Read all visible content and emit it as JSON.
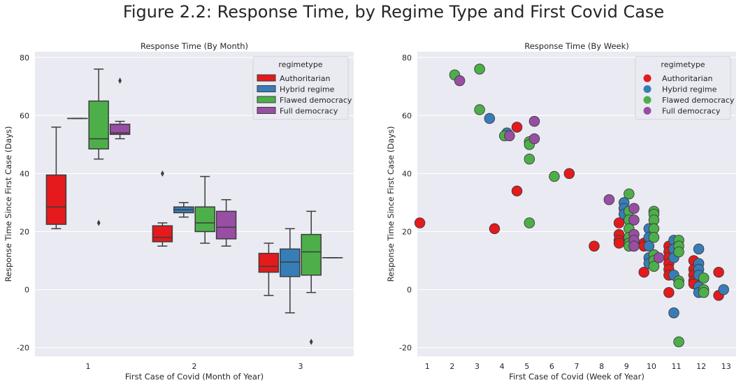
{
  "figure_title": "Figure 2.2: Response Time, by Regime Type and First Covid Case",
  "colors": {
    "Authoritarian": "#e41a1c",
    "Hybrid regime": "#377eb8",
    "Flawed democracy": "#4daf4a",
    "Full democracy": "#984ea3",
    "background": "#eaeaf2"
  },
  "chart_data": [
    {
      "type": "box",
      "title": "Response Time (By Month)",
      "xlabel": "First Case of Covid (Month of Year)",
      "ylabel": "Response Time Since First Case (Days)",
      "ylim": [
        -23,
        82
      ],
      "yticks": [
        -20,
        0,
        20,
        40,
        60,
        80
      ],
      "categories": [
        "1",
        "2",
        "3"
      ],
      "legend": {
        "title": "regimetype",
        "position": "top-right",
        "entries": [
          "Authoritarian",
          "Hybrid regime",
          "Flawed democracy",
          "Full democracy"
        ]
      },
      "series": [
        {
          "name": "Authoritarian",
          "boxes": [
            {
              "category": "1",
              "min": 21,
              "q1": 22.5,
              "median": 28.5,
              "q3": 39.5,
              "max": 56,
              "outliers": []
            },
            {
              "category": "2",
              "min": 15,
              "q1": 16.5,
              "median": 18,
              "q3": 22,
              "max": 23,
              "outliers": [
                40
              ]
            },
            {
              "category": "3",
              "min": -2,
              "q1": 6,
              "median": 8,
              "q3": 12.5,
              "max": 16,
              "outliers": []
            }
          ]
        },
        {
          "name": "Hybrid regime",
          "boxes": [
            {
              "category": "1",
              "min": 59,
              "q1": 59,
              "median": 59,
              "q3": 59,
              "max": 59,
              "outliers": []
            },
            {
              "category": "2",
              "min": 25,
              "q1": 26.5,
              "median": 27.5,
              "q3": 28.5,
              "max": 30,
              "outliers": []
            },
            {
              "category": "3",
              "min": -8,
              "q1": 4.5,
              "median": 9.5,
              "q3": 14,
              "max": 21,
              "outliers": []
            }
          ]
        },
        {
          "name": "Flawed democracy",
          "boxes": [
            {
              "category": "1",
              "min": 45,
              "q1": 48.5,
              "median": 52,
              "q3": 65,
              "max": 76,
              "outliers": [
                23
              ]
            },
            {
              "category": "2",
              "min": 16,
              "q1": 20,
              "median": 23,
              "q3": 28.5,
              "max": 39,
              "outliers": []
            },
            {
              "category": "3",
              "min": -1,
              "q1": 5,
              "median": 13,
              "q3": 19,
              "max": 27,
              "outliers": [
                -18
              ]
            }
          ]
        },
        {
          "name": "Full democracy",
          "boxes": [
            {
              "category": "1",
              "min": 52,
              "q1": 53.5,
              "median": 54,
              "q3": 57,
              "max": 58,
              "outliers": [
                72
              ]
            },
            {
              "category": "2",
              "min": 15,
              "q1": 17.5,
              "median": 21.5,
              "q3": 27,
              "max": 31,
              "outliers": []
            },
            {
              "category": "3",
              "min": 11,
              "q1": 11,
              "median": 11,
              "q3": 11,
              "max": 11,
              "outliers": []
            }
          ]
        }
      ]
    },
    {
      "type": "scatter",
      "title": "Response Time (By Week)",
      "xlabel": "First Case of Covid (Week of Year)",
      "ylabel": "Response Time Since First Case (Days)",
      "xlim": [
        0.6,
        13.4
      ],
      "ylim": [
        -23,
        82
      ],
      "xticks": [
        1,
        2,
        3,
        4,
        5,
        6,
        7,
        8,
        9,
        10,
        11,
        12,
        13
      ],
      "yticks": [
        -20,
        0,
        20,
        40,
        60,
        80
      ],
      "legend": {
        "title": "regimetype",
        "position": "top-right",
        "entries": [
          "Authoritarian",
          "Hybrid regime",
          "Flawed democracy",
          "Full democracy"
        ]
      },
      "series": [
        {
          "name": "Authoritarian",
          "points": [
            [
              0.7,
              23
            ],
            [
              3.7,
              21
            ],
            [
              4.6,
              56
            ],
            [
              4.6,
              34
            ],
            [
              6.7,
              40
            ],
            [
              7.7,
              15
            ],
            [
              8.7,
              19
            ],
            [
              8.7,
              17
            ],
            [
              8.7,
              16
            ],
            [
              8.7,
              23
            ],
            [
              9.7,
              16
            ],
            [
              9.7,
              15
            ],
            [
              9.7,
              6
            ],
            [
              10.7,
              15
            ],
            [
              10.7,
              13
            ],
            [
              10.7,
              11
            ],
            [
              10.7,
              9
            ],
            [
              10.7,
              7
            ],
            [
              10.7,
              5
            ],
            [
              10.7,
              -1
            ],
            [
              11.7,
              10
            ],
            [
              11.7,
              7
            ],
            [
              11.7,
              5
            ],
            [
              11.7,
              3
            ],
            [
              11.7,
              2
            ],
            [
              12.7,
              6
            ],
            [
              12.7,
              -2
            ]
          ]
        },
        {
          "name": "Hybrid regime",
          "points": [
            [
              3.5,
              59
            ],
            [
              4.2,
              54
            ],
            [
              8.9,
              30
            ],
            [
              8.9,
              28
            ],
            [
              8.9,
              26
            ],
            [
              9.9,
              21
            ],
            [
              9.9,
              18
            ],
            [
              9.9,
              15
            ],
            [
              9.9,
              11
            ],
            [
              9.9,
              9
            ],
            [
              10.9,
              17
            ],
            [
              10.9,
              14
            ],
            [
              10.9,
              11
            ],
            [
              10.9,
              5
            ],
            [
              10.9,
              -8
            ],
            [
              11.9,
              14
            ],
            [
              11.9,
              9
            ],
            [
              11.9,
              7
            ],
            [
              11.9,
              5
            ],
            [
              11.9,
              1
            ],
            [
              11.9,
              -1
            ],
            [
              12.9,
              0
            ]
          ]
        },
        {
          "name": "Flawed democracy",
          "points": [
            [
              2.1,
              74
            ],
            [
              3.1,
              76
            ],
            [
              3.1,
              62
            ],
            [
              4.1,
              53
            ],
            [
              5.1,
              51
            ],
            [
              5.1,
              50
            ],
            [
              5.1,
              45
            ],
            [
              5.1,
              23
            ],
            [
              6.1,
              39
            ],
            [
              9.1,
              33
            ],
            [
              9.1,
              27
            ],
            [
              9.1,
              24
            ],
            [
              9.1,
              21
            ],
            [
              9.1,
              18
            ],
            [
              9.1,
              16
            ],
            [
              9.1,
              15
            ],
            [
              10.1,
              27
            ],
            [
              10.1,
              26
            ],
            [
              10.1,
              24
            ],
            [
              10.1,
              21
            ],
            [
              10.1,
              18
            ],
            [
              10.1,
              12
            ],
            [
              10.1,
              10
            ],
            [
              10.1,
              8
            ],
            [
              11.1,
              17
            ],
            [
              11.1,
              15
            ],
            [
              11.1,
              13
            ],
            [
              11.1,
              3
            ],
            [
              11.1,
              2
            ],
            [
              11.1,
              -18
            ],
            [
              12.1,
              4
            ],
            [
              12.1,
              0
            ],
            [
              12.1,
              -1
            ]
          ]
        },
        {
          "name": "Full democracy",
          "points": [
            [
              2.3,
              72
            ],
            [
              4.3,
              53
            ],
            [
              5.3,
              58
            ],
            [
              5.3,
              52
            ],
            [
              8.3,
              31
            ],
            [
              9.3,
              28
            ],
            [
              9.3,
              24
            ],
            [
              9.3,
              19
            ],
            [
              9.3,
              17
            ],
            [
              9.3,
              15
            ],
            [
              10.3,
              11
            ]
          ]
        }
      ]
    }
  ]
}
